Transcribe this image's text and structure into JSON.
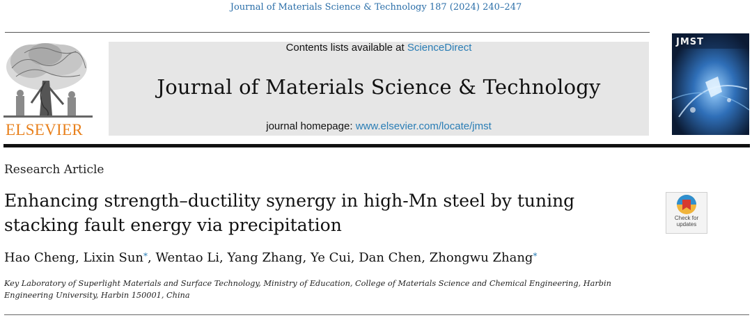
{
  "citation": "Journal of Materials Science & Technology 187 (2024) 240–247",
  "publisher": {
    "name": "ELSEVIER"
  },
  "masthead": {
    "contents_prefix": "Contents lists available at ",
    "contents_link": "ScienceDirect",
    "journal_title": "Journal of Materials Science & Technology",
    "homepage_prefix": "journal homepage: ",
    "homepage_link": "www.elsevier.com/locate/jmst"
  },
  "cover": {
    "title": "JMST"
  },
  "article": {
    "type": "Research Article",
    "title_line1": "Enhancing strength–ductility synergy in high-Mn steel by tuning",
    "title_line2": "stacking fault energy via precipitation",
    "authors": [
      {
        "name": "Hao Cheng",
        "corresponding": false
      },
      {
        "name": "Lixin Sun",
        "corresponding": true
      },
      {
        "name": "Wentao Li",
        "corresponding": false
      },
      {
        "name": "Yang Zhang",
        "corresponding": false
      },
      {
        "name": "Ye Cui",
        "corresponding": false
      },
      {
        "name": "Dan Chen",
        "corresponding": false
      },
      {
        "name": "Zhongwu Zhang",
        "corresponding": true
      }
    ],
    "affiliation_line1": "Key Laboratory of Superlight Materials and Surface Technology, Ministry of Education, College of Materials Science and Chemical Engineering, Harbin",
    "affiliation_line2": "Engineering University, Harbin 150001, China"
  },
  "check_badge": {
    "line1": "Check for",
    "line2": "updates"
  },
  "colors": {
    "link": "#2a7db5",
    "publisher": "#e8801c",
    "masthead_bg": "#e6e6e6"
  }
}
